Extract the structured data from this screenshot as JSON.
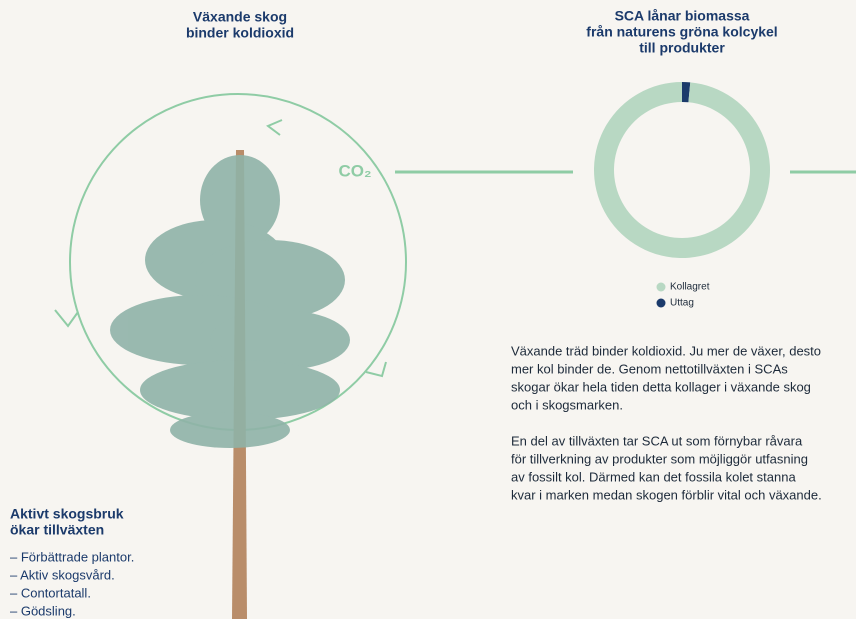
{
  "left_title": [
    "Växande skog",
    "binder koldioxid"
  ],
  "co2_label": "CO₂",
  "chart_data": {
    "type": "donut",
    "title": [
      "SCA lånar biomassa",
      "från naturens gröna kolcykel",
      "till produkter"
    ],
    "categories": [
      "Kollagret",
      "Uttag"
    ],
    "values": [
      98.5,
      1.5
    ],
    "colors": [
      "#b8d8c3",
      "#1b3a6b"
    ]
  },
  "paragraphs": [
    [
      "Växande träd binder koldioxid. Ju mer de växer, desto",
      "mer kol binder de. Genom nettotillväxten i SCAs",
      "skogar ökar hela tiden detta kollager i växande skog",
      "och i skogsmarken."
    ],
    [
      "En del av tillväxten tar SCA ut som förnybar råvara",
      "för tillverkning av produkter som möjliggör utfasning",
      "av fossilt kol. Därmed kan det fossila kolet stanna",
      "kvar i marken medan skogen förblir vital och växande."
    ]
  ],
  "forestry": {
    "title": [
      "Aktivt skogsbruk",
      "ökar tillväxten"
    ],
    "items": [
      "– Förbättrade plantor.",
      "– Aktiv skogsvård.",
      "– Contortatall.",
      "– Gödsling."
    ]
  }
}
